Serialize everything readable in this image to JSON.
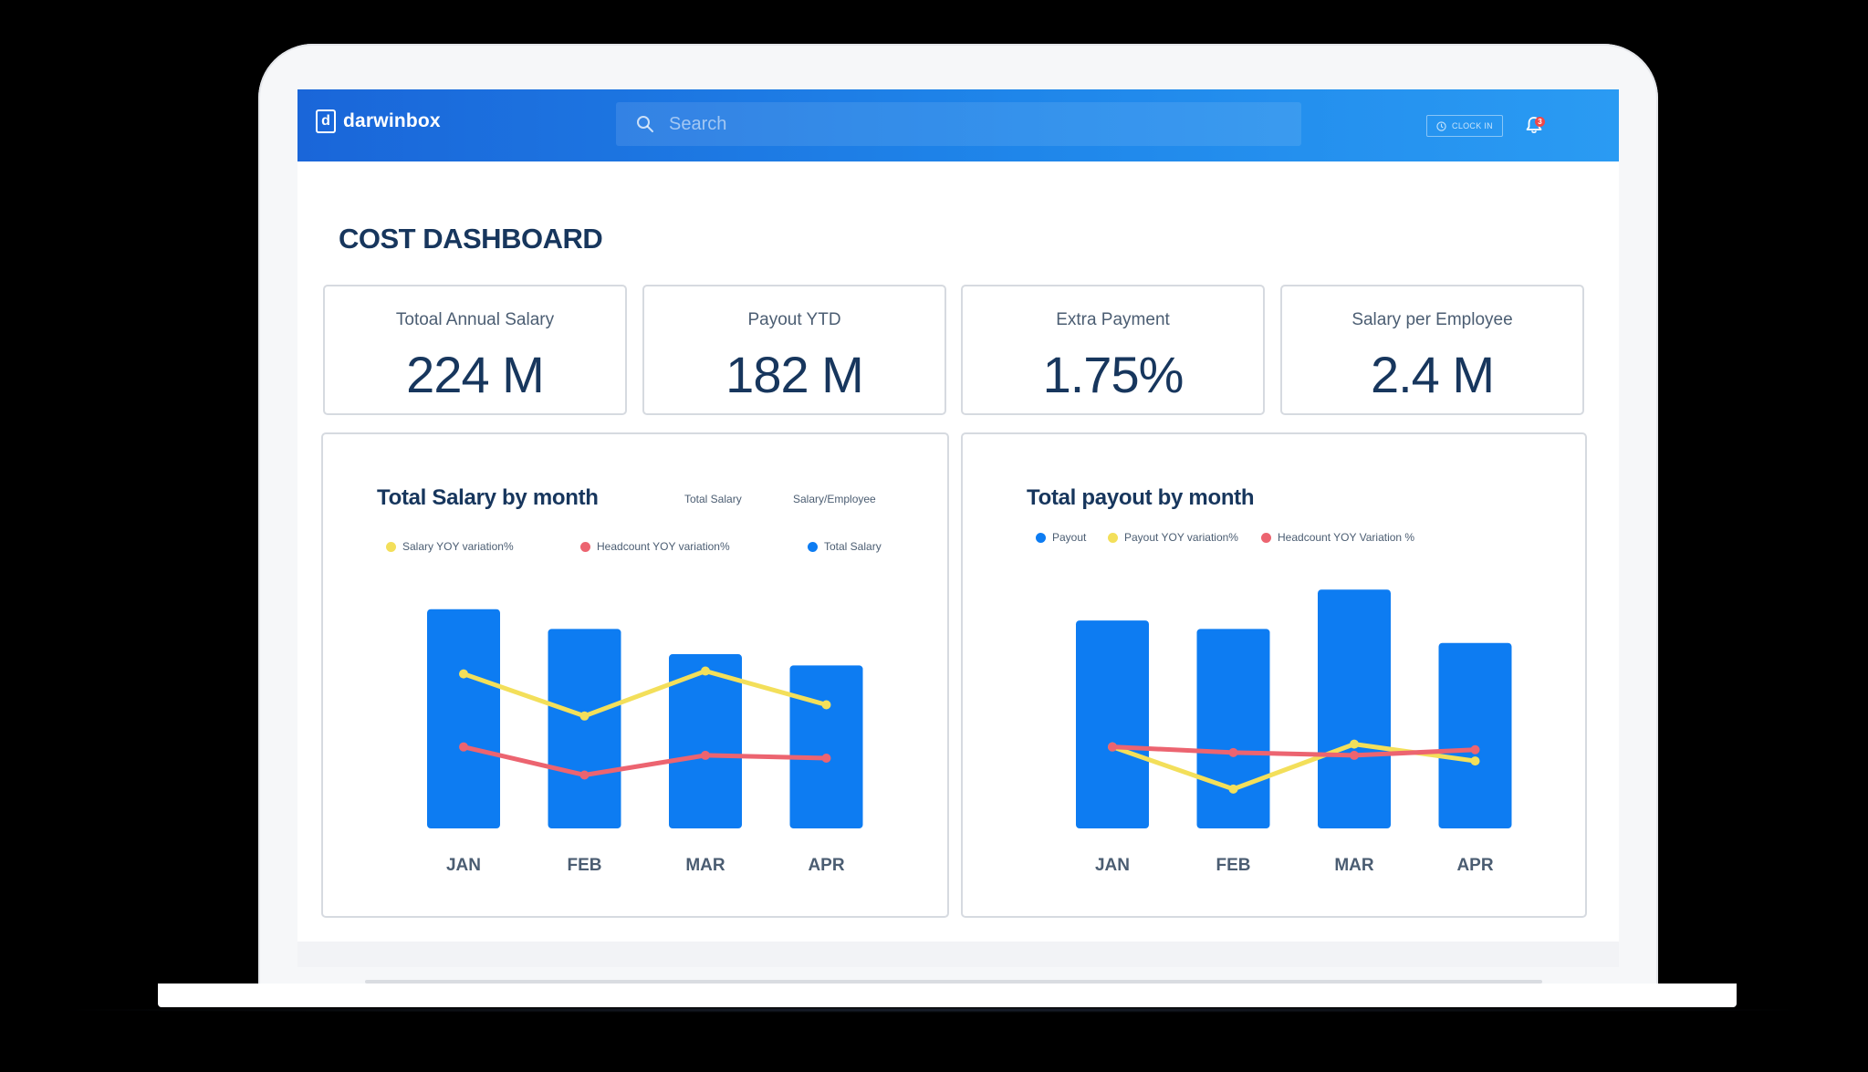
{
  "app": {
    "brand": "darwinbox",
    "logo_letter": "d"
  },
  "topbar": {
    "search_placeholder": "Search",
    "clock_in_label": "CLOCK IN",
    "notification_count": "3"
  },
  "page": {
    "title": "COST DASHBOARD"
  },
  "kpis": [
    {
      "label": "Totoal Annual Salary",
      "value": "224 M"
    },
    {
      "label": "Payout YTD",
      "value": "182 M"
    },
    {
      "label": "Extra Payment",
      "value": "1.75%"
    },
    {
      "label": "Salary per Employee",
      "value": "2.4 M"
    }
  ],
  "colors": {
    "bar": "#0d7cf2",
    "yellow": "#f3df5a",
    "red": "#ec6470",
    "title": "#17365d"
  },
  "salary_panel": {
    "tabs": [
      "Total Salary",
      "Salary/Employee"
    ],
    "legend": [
      "Salary YOY variation%",
      "Headcount YOY variation%",
      "Total Salary"
    ]
  },
  "payout_panel": {
    "legend": [
      "Payout",
      "Payout YOY variation%",
      "Headcount YOY Variation %"
    ]
  },
  "chart_data": [
    {
      "type": "bar",
      "title": "Total Salary by month",
      "categories": [
        "JAN",
        "FEB",
        "MAR",
        "APR"
      ],
      "ylim": [
        0,
        100
      ],
      "series": [
        {
          "name": "Total Salary",
          "kind": "bar",
          "values": [
            78,
            71,
            62,
            58
          ]
        },
        {
          "name": "Salary YOY variation%",
          "kind": "line",
          "values": [
            55,
            40,
            56,
            44
          ]
        },
        {
          "name": "Headcount YOY variation%",
          "kind": "line",
          "values": [
            29,
            19,
            26,
            25
          ]
        }
      ]
    },
    {
      "type": "bar",
      "title": "Total payout by month",
      "categories": [
        "JAN",
        "FEB",
        "MAR",
        "APR"
      ],
      "ylim": [
        0,
        100
      ],
      "series": [
        {
          "name": "Payout",
          "kind": "bar",
          "values": [
            74,
            71,
            85,
            66
          ]
        },
        {
          "name": "Payout YOY variation%",
          "kind": "line",
          "values": [
            29,
            14,
            30,
            24
          ]
        },
        {
          "name": "Headcount YOY Variation %",
          "kind": "line",
          "values": [
            29,
            27,
            26,
            28
          ]
        }
      ]
    }
  ]
}
